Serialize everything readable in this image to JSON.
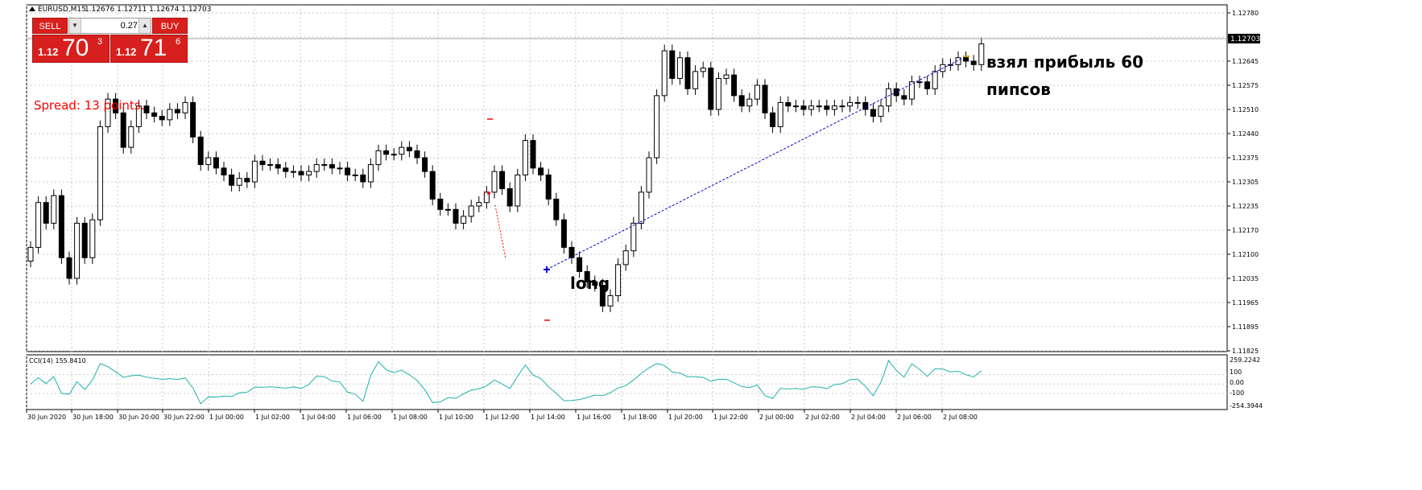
{
  "chart_header": {
    "symbol_timeframe": "EURUSD,M15",
    "ohlc": "1.12676 1.12711 1.12674 1.12703"
  },
  "trade_panel": {
    "sell_label": "SELL",
    "buy_label": "BUY",
    "lot_value": "0.27",
    "sell_price_prefix": "1.12",
    "sell_price_big": "70",
    "sell_price_sup": "3",
    "buy_price_prefix": "1.12",
    "buy_price_big": "71",
    "buy_price_sup": "6"
  },
  "annotations": {
    "spread": "Spread: 13 points.",
    "long": "long",
    "profit_line1": "взял прибыль 60",
    "profit_line2": "пипсов"
  },
  "indicator": {
    "label": "CCI(14) 155.8410",
    "scale_labels": [
      "259.2242",
      "100",
      "0.00",
      "-100",
      "-254.3944"
    ]
  },
  "colors": {
    "background": "#ffffff",
    "grid": "#c8c8c8",
    "candle": "#000000",
    "cci_line": "#20b2aa",
    "trade_line": "#0000cc",
    "panel_red": "#d7201d",
    "spread_text": "#ff0000"
  },
  "chart_data": {
    "type": "candlestick",
    "y_price_labels": [
      "1.12780",
      "1.12710",
      "1.12645",
      "1.12575",
      "1.12510",
      "1.12440",
      "1.12375",
      "1.12305",
      "1.12235",
      "1.12170",
      "1.12100",
      "1.12035",
      "1.11965",
      "1.11895",
      "1.11825"
    ],
    "current_price": "1.12703",
    "ylim": [
      1.1181,
      1.1279
    ],
    "x_labels": [
      "30 Jun 2020",
      "30 Jun 18:00",
      "30 Jun 20:00",
      "30 Jun 22:00",
      "1 Jul 00:00",
      "1 Jul 02:00",
      "1 Jul 04:00",
      "1 Jul 06:00",
      "1 Jul 08:00",
      "1 Jul 10:00",
      "1 Jul 12:00",
      "1 Jul 14:00",
      "1 Jul 16:00",
      "1 Jul 18:00",
      "1 Jul 20:00",
      "1 Jul 22:00",
      "2 Jul 00:00",
      "2 Jul 02:00",
      "2 Jul 04:00",
      "2 Jul 06:00",
      "2 Jul 08:00"
    ],
    "close": [
      1.1211,
      1.1224,
      1.1218,
      1.1226,
      1.1208,
      1.1202,
      1.1218,
      1.1208,
      1.1219,
      1.1246,
      1.1254,
      1.125,
      1.124,
      1.1246,
      1.1252,
      1.125,
      1.1249,
      1.1248,
      1.1251,
      1.125,
      1.1253,
      1.1243,
      1.1235,
      1.1237,
      1.1234,
      1.1232,
      1.1229,
      1.1231,
      1.123,
      1.1236,
      1.1235,
      1.1235,
      1.1234,
      1.1233,
      1.1233,
      1.1232,
      1.1233,
      1.1235,
      1.1235,
      1.1234,
      1.1234,
      1.1232,
      1.1232,
      1.123,
      1.1235,
      1.1239,
      1.1238,
      1.1238,
      1.124,
      1.1239,
      1.1237,
      1.1233,
      1.1225,
      1.1222,
      1.1222,
      1.1218,
      1.122,
      1.1223,
      1.1224,
      1.1227,
      1.1233,
      1.1228,
      1.1223,
      1.1232,
      1.1242,
      1.1234,
      1.1232,
      1.1225,
      1.1219,
      1.1211,
      1.1208,
      1.1204,
      1.1201,
      1.12,
      1.1194,
      1.1197,
      1.1206,
      1.121,
      1.1218,
      1.1227,
      1.1237,
      1.1255,
      1.1268,
      1.126,
      1.1266,
      1.1257,
      1.1262,
      1.1263,
      1.1251,
      1.126,
      1.1261,
      1.1255,
      1.1252,
      1.1254,
      1.1258,
      1.125,
      1.1246,
      1.1253,
      1.1252,
      1.1252,
      1.1251,
      1.1252,
      1.1252,
      1.1251,
      1.1252,
      1.1252,
      1.1253,
      1.1253,
      1.1251,
      1.1249,
      1.1252,
      1.1257,
      1.1255,
      1.1254,
      1.1259,
      1.1259,
      1.1257,
      1.1262,
      1.1264,
      1.1264,
      1.1266,
      1.1265,
      1.1264,
      1.127
    ]
  }
}
